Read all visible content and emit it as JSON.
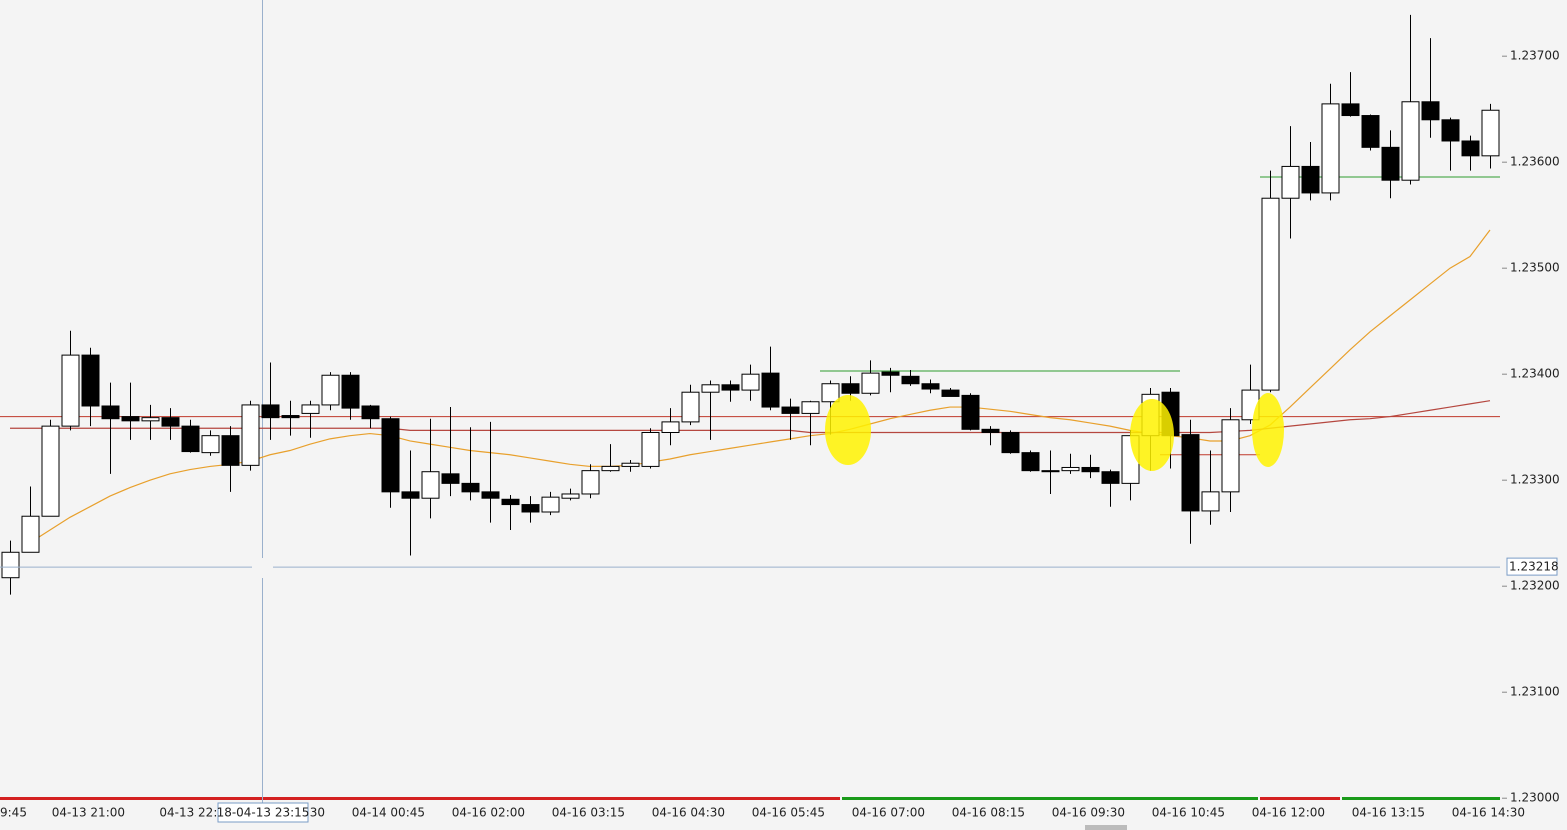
{
  "chart_data": {
    "type": "candlestick",
    "categories": [
      "9:45",
      null,
      null,
      null,
      "04-13 21:00",
      null,
      null,
      null,
      null,
      "04-13 22:1",
      null,
      null,
      null,
      null,
      ":30",
      null,
      null,
      null,
      null,
      "04-14 00:45",
      null,
      null,
      null,
      null,
      "04-16 02:00",
      null,
      null,
      null,
      null,
      "04-16 03:15",
      null,
      null,
      null,
      null,
      "04-16 04:30",
      null,
      null,
      null,
      null,
      "04-16 05:45",
      null,
      null,
      null,
      null,
      "04-16 07:00",
      null,
      null,
      null,
      null,
      "04-16 08:15",
      null,
      null,
      null,
      null,
      "04-16 09:30",
      null,
      null,
      null,
      null,
      "04-16 10:45",
      null,
      null,
      null,
      null,
      "04-16 12:00",
      null,
      null,
      null,
      null,
      "04-16 13:15",
      null,
      null,
      null,
      null,
      "04-16 14:30"
    ],
    "open": [
      1.23208,
      1.23232,
      1.23266,
      1.23351,
      1.23418,
      1.2337,
      1.2336,
      1.23356,
      1.23359,
      1.23351,
      1.23326,
      1.23342,
      1.23314,
      1.23371,
      1.23361,
      1.23363,
      1.23371,
      1.23399,
      1.2337,
      1.23358,
      1.23289,
      1.23283,
      1.23306,
      1.23297,
      1.23289,
      1.23282,
      1.23277,
      1.2327,
      1.23283,
      1.23287,
      1.23309,
      1.23313,
      1.23313,
      1.23345,
      1.23355,
      1.23383,
      1.2339,
      1.23385,
      1.23401,
      1.23369,
      1.23363,
      1.23374,
      1.23391,
      1.23382,
      1.23402,
      1.23398,
      1.23391,
      1.23385,
      1.2338,
      1.23348,
      1.23345,
      1.23326,
      1.23309,
      1.23309,
      1.23312,
      1.23308,
      1.23297,
      1.23342,
      1.23383,
      1.23343,
      1.23271,
      1.23289,
      1.23357,
      1.23385,
      1.23566,
      1.23596,
      1.23571,
      1.23655,
      1.23644,
      1.23614,
      1.23583,
      1.23657,
      1.2364,
      1.2362,
      1.23606
    ],
    "high": [
      1.23243,
      1.23294,
      1.23357,
      1.23441,
      1.23425,
      1.23392,
      1.23392,
      1.23371,
      1.23368,
      1.23357,
      1.23347,
      1.23351,
      1.23375,
      1.23411,
      1.23375,
      1.23375,
      1.23402,
      1.23402,
      1.23371,
      1.2336,
      1.23328,
      1.23358,
      1.23369,
      1.2335,
      1.23355,
      1.23286,
      1.23285,
      1.23289,
      1.23292,
      1.23315,
      1.23334,
      1.23319,
      1.23349,
      1.23368,
      1.2339,
      1.23394,
      1.23394,
      1.23409,
      1.23426,
      1.23377,
      1.23375,
      1.23394,
      1.23398,
      1.23413,
      1.23406,
      1.23404,
      1.23395,
      1.23387,
      1.23382,
      1.23351,
      1.23347,
      1.23328,
      1.23328,
      1.23325,
      1.23324,
      1.2331,
      1.23347,
      1.23387,
      1.23387,
      1.23357,
      1.23328,
      1.23368,
      1.23409,
      1.23592,
      1.23634,
      1.23619,
      1.23674,
      1.23685,
      1.23645,
      1.2363,
      1.23739,
      1.23717,
      1.23642,
      1.23625,
      1.23655
    ],
    "low": [
      1.23192,
      1.23232,
      1.23266,
      1.23347,
      1.23351,
      1.23306,
      1.23338,
      1.23338,
      1.23338,
      1.23326,
      1.23323,
      1.23289,
      1.23309,
      1.23338,
      1.23342,
      1.2334,
      1.23366,
      1.23357,
      1.23349,
      1.23274,
      1.23229,
      1.23264,
      1.23285,
      1.23281,
      1.2326,
      1.23253,
      1.2326,
      1.23267,
      1.23281,
      1.23283,
      1.23308,
      1.23308,
      1.23311,
      1.23333,
      1.23352,
      1.23338,
      1.23374,
      1.23375,
      1.23366,
      1.23338,
      1.23333,
      1.23343,
      1.23375,
      1.2338,
      1.23383,
      1.23389,
      1.23382,
      1.23379,
      1.23347,
      1.23333,
      1.23325,
      1.23308,
      1.23287,
      1.23306,
      1.23302,
      1.23275,
      1.23281,
      1.23309,
      1.23311,
      1.2324,
      1.23258,
      1.2327,
      1.23353,
      1.23383,
      1.23528,
      1.23564,
      1.23564,
      1.23643,
      1.23611,
      1.23566,
      1.23579,
      1.23623,
      1.23592,
      1.23592,
      1.23594
    ],
    "close": [
      1.23232,
      1.23266,
      1.23351,
      1.23418,
      1.2337,
      1.23358,
      1.23356,
      1.23359,
      1.23351,
      1.23327,
      1.23342,
      1.23314,
      1.23371,
      1.23359,
      1.23359,
      1.23371,
      1.23399,
      1.23368,
      1.23358,
      1.23289,
      1.23283,
      1.23308,
      1.23297,
      1.23289,
      1.23283,
      1.23277,
      1.2327,
      1.23284,
      1.23287,
      1.23309,
      1.23313,
      1.23316,
      1.23345,
      1.23355,
      1.23383,
      1.2339,
      1.23385,
      1.234,
      1.23369,
      1.23363,
      1.23374,
      1.23391,
      1.23382,
      1.23401,
      1.23399,
      1.23391,
      1.23386,
      1.23379,
      1.23348,
      1.23345,
      1.23326,
      1.23309,
      1.23308,
      1.23312,
      1.23308,
      1.23297,
      1.23342,
      1.23381,
      1.23342,
      1.23271,
      1.23289,
      1.23357,
      1.23385,
      1.23566,
      1.23596,
      1.23571,
      1.23655,
      1.23644,
      1.23614,
      1.23583,
      1.23657,
      1.2364,
      1.2362,
      1.23606,
      1.23649
    ],
    "up_color": "#ffffff",
    "down_color": "#000000",
    "overlays": [
      {
        "color": "#e8a02c",
        "values": [
          null,
          1.23241,
          1.23253,
          1.23265,
          1.23275,
          1.23285,
          1.23293,
          1.233,
          1.23306,
          1.2331,
          1.23313,
          1.23315,
          1.23318,
          1.23324,
          1.23328,
          1.23334,
          1.23339,
          1.23342,
          1.23344,
          1.23342,
          1.23337,
          1.23334,
          1.23331,
          1.23328,
          1.23326,
          1.23324,
          1.23321,
          1.23318,
          1.23315,
          1.23313,
          1.23313,
          1.23314,
          1.23317,
          1.2332,
          1.23324,
          1.23327,
          1.2333,
          1.23333,
          1.23336,
          1.23339,
          1.23342,
          1.23344,
          1.23348,
          1.23353,
          1.23358,
          1.23362,
          1.23366,
          1.23369,
          1.23369,
          1.23367,
          1.23365,
          1.23362,
          1.23359,
          1.23357,
          1.23354,
          1.23351,
          1.23347,
          1.23344,
          1.23342,
          1.2334,
          1.23337,
          1.23337,
          1.23342,
          1.23352,
          1.23369,
          1.23387,
          1.23405,
          1.23423,
          1.2344,
          1.23455,
          1.2347,
          1.23485,
          1.235,
          1.23511,
          1.23536
        ]
      },
      {
        "color": "#b5473f",
        "values": [
          1.23349,
          1.23349,
          1.23349,
          1.23349,
          1.23349,
          1.23349,
          1.23349,
          1.23349,
          1.23349,
          1.23349,
          1.23349,
          1.23349,
          1.23349,
          1.23349,
          1.23349,
          1.23349,
          1.23349,
          1.23349,
          1.23349,
          1.23349,
          1.23347,
          1.23347,
          1.23347,
          1.23347,
          1.23347,
          1.23347,
          1.23347,
          1.23347,
          1.23347,
          1.23347,
          1.23347,
          1.23347,
          1.23347,
          1.23347,
          1.23347,
          1.23347,
          1.23347,
          1.23347,
          1.23347,
          1.23347,
          1.23345,
          1.23345,
          1.23345,
          1.23345,
          1.23345,
          1.23345,
          1.23345,
          1.23345,
          1.23345,
          1.23345,
          1.23345,
          1.23345,
          1.23345,
          1.23345,
          1.23345,
          1.23345,
          1.23345,
          1.23345,
          1.23345,
          1.23345,
          1.23345,
          1.23346,
          1.23347,
          1.23349,
          1.23351,
          1.23353,
          1.23355,
          1.23357,
          1.23358,
          1.2336,
          1.23363,
          1.23366,
          1.23369,
          1.23372,
          1.23375
        ]
      }
    ],
    "levels": [
      {
        "value": 1.2336,
        "color": "#c0392b",
        "span": [
          0,
          74
        ]
      },
      {
        "value": 1.23403,
        "color": "#2e9b2e",
        "span": [
          41,
          58
        ]
      },
      {
        "value": 1.23324,
        "color": "#c0392b",
        "span": [
          58,
          62
        ]
      },
      {
        "value": 1.23586,
        "color": "#2e9b2e",
        "span": [
          63,
          74
        ]
      }
    ],
    "ylim": [
      1.2297,
      1.23753
    ],
    "yticks": [
      {
        "value": 1.23,
        "label": "1.23000"
      },
      {
        "value": 1.231,
        "label": "1.23100"
      },
      {
        "value": 1.232,
        "label": "1.23200"
      },
      {
        "value": 1.233,
        "label": "1.23300"
      },
      {
        "value": 1.234,
        "label": "1.23400"
      },
      {
        "value": 1.235,
        "label": "1.23500"
      },
      {
        "value": 1.236,
        "label": "1.23600"
      },
      {
        "value": 1.237,
        "label": "1.23700"
      }
    ],
    "crosshair": {
      "price": 1.23218,
      "time_label": "18-04-13 23:15"
    }
  }
}
